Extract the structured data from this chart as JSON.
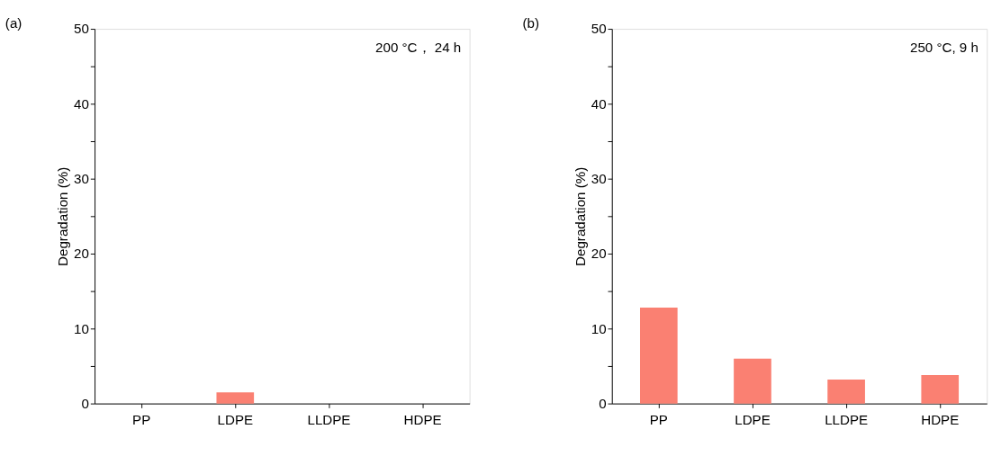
{
  "chart_data": [
    {
      "type": "bar",
      "title": "(a)",
      "ylabel": "Degradation (%)",
      "categories": [
        "PP",
        "LDPE",
        "LLDPE",
        "HDPE"
      ],
      "values": [
        0,
        1.5,
        0,
        0
      ],
      "color": "#fa8072",
      "ylim": [
        0,
        50
      ],
      "yticks": [
        0,
        {
          "value": 5,
          "label": null
        },
        10,
        {
          "value": 15,
          "label": null
        },
        20,
        {
          "value": 25,
          "label": null
        },
        30,
        {
          "value": 35,
          "label": null
        },
        40,
        {
          "value": 45,
          "label": null
        },
        50
      ],
      "grid": false,
      "annotations": [
        "200 °C，  24 h"
      ]
    },
    {
      "type": "bar",
      "title": "(b)",
      "ylabel": "Degradation (%)",
      "categories": [
        "PP",
        "LDPE",
        "LLDPE",
        "HDPE"
      ],
      "values": [
        12.8,
        6.0,
        3.2,
        3.8
      ],
      "color": "#fa8072",
      "ylim": [
        0,
        50
      ],
      "yticks": [
        0,
        {
          "value": 5,
          "label": null
        },
        10,
        {
          "value": 15,
          "label": null
        },
        20,
        {
          "value": 25,
          "label": null
        },
        30,
        {
          "value": 35,
          "label": null
        },
        40,
        {
          "value": 45,
          "label": null
        },
        50
      ],
      "grid": false,
      "annotations": [
        "250 °C, 9 h"
      ]
    }
  ]
}
